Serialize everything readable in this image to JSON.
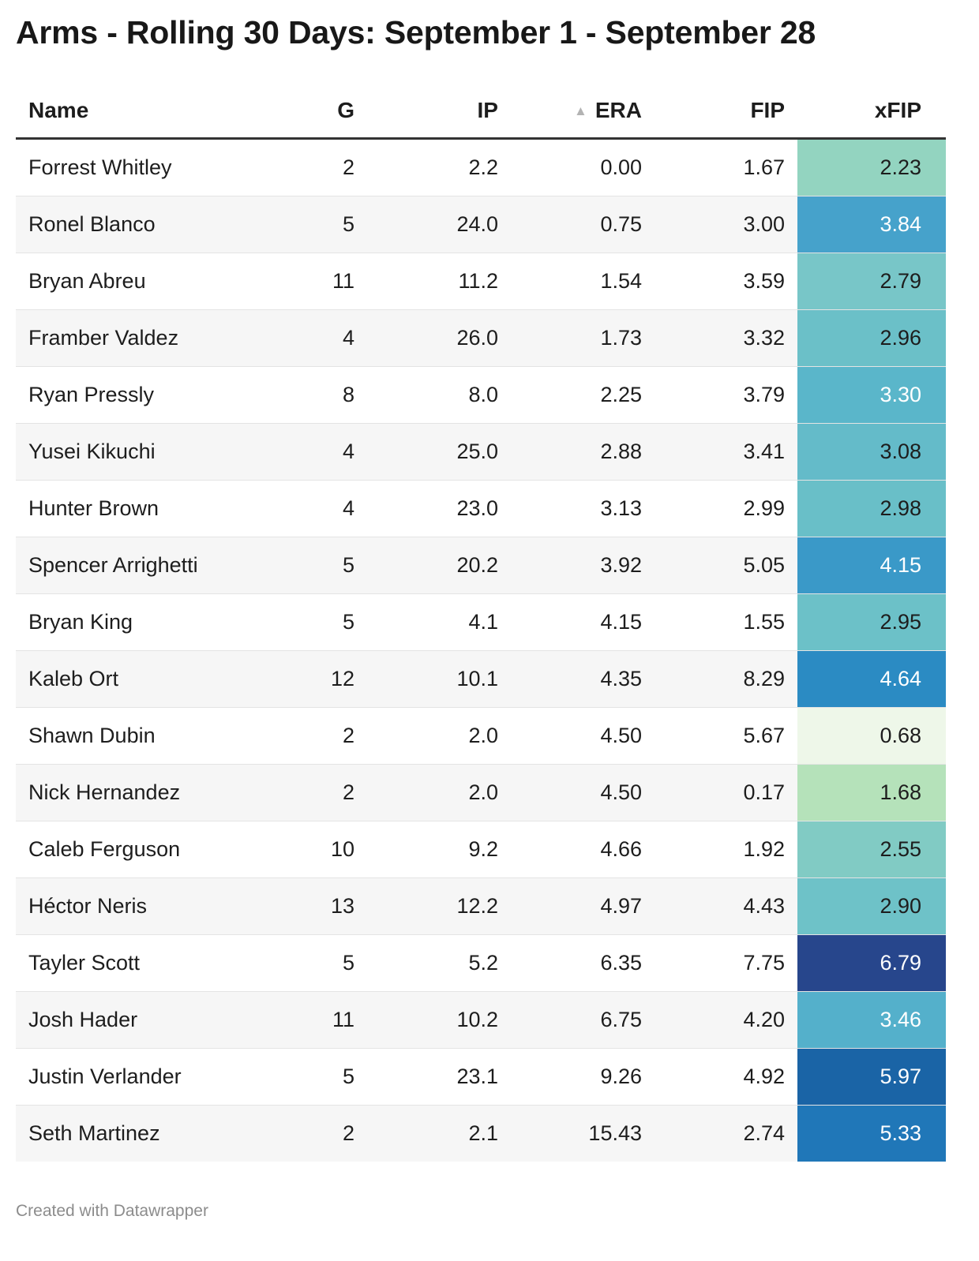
{
  "chart_data": {
    "type": "table",
    "title": "Arms - Rolling 30 Days: September 1 - September 28",
    "columns": [
      "Name",
      "G",
      "IP",
      "ERA",
      "FIP",
      "xFIP"
    ],
    "sorted_column": "ERA",
    "sort_direction": "ascending",
    "heatmap_column": "xFIP",
    "heatmap_colors": {
      "low": "#f0f8ec",
      "mid_low": "#b4e2bb",
      "mid": "#6dc1c8",
      "mid_high": "#2b8ac2",
      "high": "#27468c"
    },
    "rows": [
      {
        "name": "Forrest Whitley",
        "g": "2",
        "ip": "2.2",
        "era": "0.00",
        "fip": "1.67",
        "xfip": "2.23",
        "xfip_color": "#93d4c0",
        "xfip_text": "#1d1d1d"
      },
      {
        "name": "Ronel Blanco",
        "g": "5",
        "ip": "24.0",
        "era": "0.75",
        "fip": "3.00",
        "xfip": "3.84",
        "xfip_color": "#46a2cb",
        "xfip_text": "#ffffff"
      },
      {
        "name": "Bryan Abreu",
        "g": "11",
        "ip": "11.2",
        "era": "1.54",
        "fip": "3.59",
        "xfip": "2.79",
        "xfip_color": "#78c6c8",
        "xfip_text": "#1d1d1d"
      },
      {
        "name": "Framber Valdez",
        "g": "4",
        "ip": "26.0",
        "era": "1.73",
        "fip": "3.32",
        "xfip": "2.96",
        "xfip_color": "#6bc0c8",
        "xfip_text": "#1d1d1d"
      },
      {
        "name": "Ryan Pressly",
        "g": "8",
        "ip": "8.0",
        "era": "2.25",
        "fip": "3.79",
        "xfip": "3.30",
        "xfip_color": "#5ab6ca",
        "xfip_text": "#ffffff"
      },
      {
        "name": "Yusei Kikuchi",
        "g": "4",
        "ip": "25.0",
        "era": "2.88",
        "fip": "3.41",
        "xfip": "3.08",
        "xfip_color": "#64bbc9",
        "xfip_text": "#1d1d1d"
      },
      {
        "name": "Hunter Brown",
        "g": "4",
        "ip": "23.0",
        "era": "3.13",
        "fip": "2.99",
        "xfip": "2.98",
        "xfip_color": "#69bfc8",
        "xfip_text": "#1d1d1d"
      },
      {
        "name": "Spencer Arrighetti",
        "g": "5",
        "ip": "20.2",
        "era": "3.92",
        "fip": "5.05",
        "xfip": "4.15",
        "xfip_color": "#3a99c8",
        "xfip_text": "#ffffff"
      },
      {
        "name": "Bryan King",
        "g": "5",
        "ip": "4.1",
        "era": "4.15",
        "fip": "1.55",
        "xfip": "2.95",
        "xfip_color": "#6cc1c8",
        "xfip_text": "#1d1d1d"
      },
      {
        "name": "Kaleb Ort",
        "g": "12",
        "ip": "10.1",
        "era": "4.35",
        "fip": "8.29",
        "xfip": "4.64",
        "xfip_color": "#2b8bc3",
        "xfip_text": "#ffffff"
      },
      {
        "name": "Shawn Dubin",
        "g": "2",
        "ip": "2.0",
        "era": "4.50",
        "fip": "5.67",
        "xfip": "0.68",
        "xfip_color": "#eef7e9",
        "xfip_text": "#1d1d1d"
      },
      {
        "name": "Nick Hernandez",
        "g": "2",
        "ip": "2.0",
        "era": "4.50",
        "fip": "0.17",
        "xfip": "1.68",
        "xfip_color": "#b5e2ba",
        "xfip_text": "#1d1d1d"
      },
      {
        "name": "Caleb Ferguson",
        "g": "10",
        "ip": "9.2",
        "era": "4.66",
        "fip": "1.92",
        "xfip": "2.55",
        "xfip_color": "#81cbc4",
        "xfip_text": "#1d1d1d"
      },
      {
        "name": "Héctor Neris",
        "g": "13",
        "ip": "12.2",
        "era": "4.97",
        "fip": "4.43",
        "xfip": "2.90",
        "xfip_color": "#6ec2c8",
        "xfip_text": "#1d1d1d"
      },
      {
        "name": "Tayler Scott",
        "g": "5",
        "ip": "5.2",
        "era": "6.35",
        "fip": "7.75",
        "xfip": "6.79",
        "xfip_color": "#27468c",
        "xfip_text": "#ffffff"
      },
      {
        "name": "Josh Hader",
        "g": "11",
        "ip": "10.2",
        "era": "6.75",
        "fip": "4.20",
        "xfip": "3.46",
        "xfip_color": "#54b0cb",
        "xfip_text": "#ffffff"
      },
      {
        "name": "Justin Verlander",
        "g": "5",
        "ip": "23.1",
        "era": "9.26",
        "fip": "4.92",
        "xfip": "5.97",
        "xfip_color": "#1a64a6",
        "xfip_text": "#ffffff"
      },
      {
        "name": "Seth Martinez",
        "g": "2",
        "ip": "2.1",
        "era": "15.43",
        "fip": "2.74",
        "xfip": "5.33",
        "xfip_color": "#2077b8",
        "xfip_text": "#ffffff"
      }
    ]
  },
  "footer": "Created with Datawrapper"
}
